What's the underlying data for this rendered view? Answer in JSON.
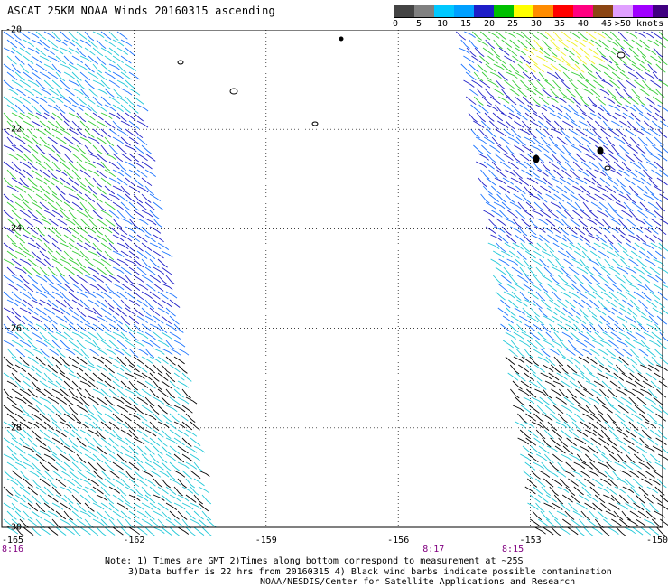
{
  "title": "ASCAT 25KM NOAA Winds 20160315 ascending",
  "scale": {
    "labels": [
      "0",
      "5",
      "10",
      "15",
      "20",
      "25",
      "30",
      "35",
      "40",
      "45",
      ">50 knots"
    ],
    "colors": [
      "#444444",
      "#808080",
      "#00c8ff",
      "#00a0ff",
      "#1e1ec8",
      "#00c000",
      "#ffff00",
      "#ff8c00",
      "#ff0000",
      "#ff0080",
      "#8b4513",
      "#e0a0ff",
      "#a000ff",
      "#400080"
    ]
  },
  "map": {
    "lat_labels": [
      "-20",
      "-22",
      "-24",
      "-26",
      "-28",
      "-30"
    ],
    "lon_labels": [
      "-165",
      "-162",
      "-159",
      "-156",
      "-153",
      "-150"
    ],
    "lon_range": [
      -165,
      -150
    ],
    "lat_range": [
      -20,
      -30
    ],
    "time_labels": [
      "8:16",
      "8:17",
      "8:15"
    ],
    "time_lons": [
      -165,
      -155.2,
      -153.4
    ]
  },
  "notes": {
    "line1": "Note: 1) Times are GMT 2)Times along bottom correspond to measurement at ~25S",
    "line2": "3)Data buffer is 22 hrs from 20160315 4) Black wind barbs indicate possible contamination",
    "line3": "NOAA/NESDIS/Center for Satellite Applications and Research"
  }
}
